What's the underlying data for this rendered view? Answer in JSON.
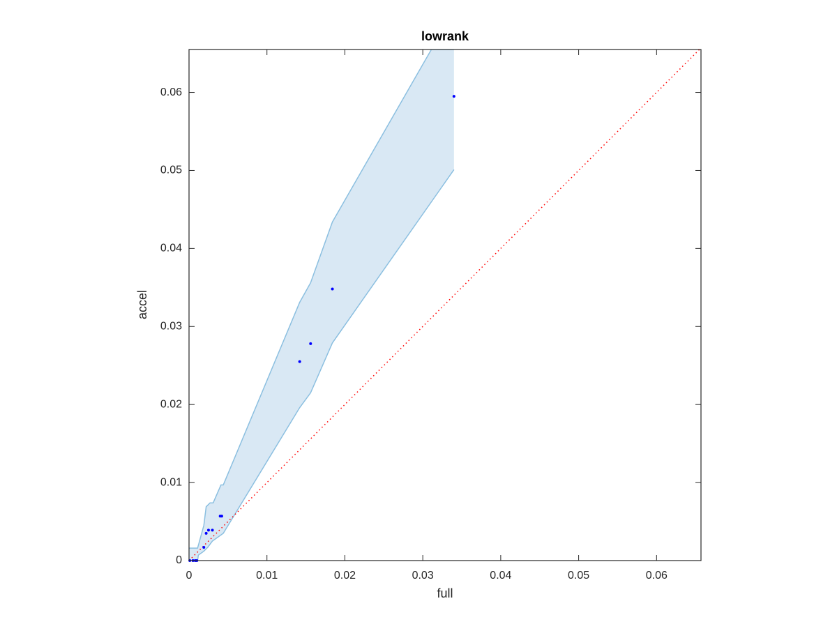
{
  "chart_data": {
    "type": "scatter",
    "title": "lowrank",
    "x_label": "full",
    "y_label": "accel",
    "x": [
      0.034,
      0.0184,
      0.0156,
      0.0142,
      0.0042,
      0.004,
      0.003,
      0.0025,
      0.0022,
      0.0019,
      0.0001,
      0.0005,
      0.0008,
      0.001
    ],
    "y": [
      0.0595,
      0.0348,
      0.0278,
      0.0255,
      0.0057,
      0.0057,
      0.0039,
      0.0039,
      0.0035,
      0.0017,
      0,
      0,
      0,
      0
    ],
    "color": "#0000ff",
    "band_upper": {
      "x": [
        0,
        0.0011,
        0.0019,
        0.0022,
        0.0027,
        0.0031,
        0.0041,
        0.0044,
        0.0142,
        0.0156,
        0.0184,
        0.0311,
        0.034
      ],
      "y": [
        0.0016,
        0.0016,
        0.0045,
        0.0069,
        0.0074,
        0.0074,
        0.0097,
        0.0097,
        0.0331,
        0.0356,
        0.0434,
        0.0655,
        0.0655
      ]
    },
    "band_lower": {
      "x": [
        0,
        0.0011,
        0.0012,
        0.0019,
        0.0024,
        0.003,
        0.0044,
        0.0142,
        0.0156,
        0.0184,
        0.034
      ],
      "y": [
        0,
        0,
        0.0007,
        0.0012,
        0.0017,
        0.0025,
        0.0035,
        0.0196,
        0.0215,
        0.0279,
        0.0501
      ]
    },
    "band_color": "#d9e8f4",
    "band_edge_color": "#8bbfe0",
    "diagonal_color": "#ff0000",
    "xlim": [
      0,
      0.0657
    ],
    "ylim": [
      0,
      0.0655
    ],
    "xticks": [
      0,
      0.01,
      0.02,
      0.03,
      0.04,
      0.05,
      0.06
    ],
    "yticks": [
      0,
      0.01,
      0.02,
      0.03,
      0.04,
      0.05,
      0.06
    ],
    "grid": false
  }
}
